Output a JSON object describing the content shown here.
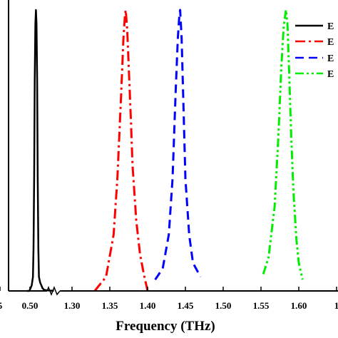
{
  "chart_data": {
    "type": "line",
    "title": "",
    "xlabel": "Frequency (THz)",
    "ylabel": "",
    "grid": false,
    "legend_placement": "top-right",
    "axis_break": "between 0.50 and 1.30 (zigzag break marks on x-axis)",
    "x_tick_labels": [
      "5",
      "0.50",
      "1.30",
      "1.35",
      "1.40",
      "1.45",
      "1.50",
      "1.55",
      "1.60",
      "1"
    ],
    "xlim_left_segment": [
      0.445,
      0.555
    ],
    "xlim_right_segment": [
      1.275,
      1.635
    ],
    "ylim": [
      0,
      1
    ],
    "series": [
      {
        "name": "E",
        "color": "#000000",
        "dash": "solid",
        "x": [
          0.495,
          0.497,
          0.499,
          0.501,
          0.503,
          0.505,
          0.506,
          0.507,
          0.508,
          0.509,
          0.51,
          0.511,
          0.512,
          0.513,
          0.514,
          0.515,
          0.517,
          0.519,
          0.521,
          0.523,
          0.525,
          0.53,
          0.535,
          0.54
        ],
        "y": [
          0.0,
          0.0,
          0.0,
          0.01,
          0.02,
          0.05,
          0.15,
          0.4,
          0.75,
          0.95,
          1.0,
          0.95,
          0.75,
          0.4,
          0.15,
          0.05,
          0.03,
          0.02,
          0.01,
          0.005,
          0.003,
          0.002,
          0.001,
          0.001
        ]
      },
      {
        "name": "E",
        "color": "#ff0000",
        "dash": "dashdot",
        "x": [
          1.33,
          1.345,
          1.355,
          1.36,
          1.365,
          1.368,
          1.37,
          1.371,
          1.373,
          1.375,
          1.378,
          1.38,
          1.385,
          1.39,
          1.395,
          1.4
        ],
        "y": [
          0.0,
          0.05,
          0.2,
          0.4,
          0.7,
          0.9,
          0.98,
          1.0,
          0.93,
          0.8,
          0.6,
          0.45,
          0.25,
          0.13,
          0.06,
          0.0
        ]
      },
      {
        "name": "E",
        "color": "#0000ff",
        "dash": "dashed",
        "x": [
          1.41,
          1.42,
          1.428,
          1.433,
          1.437,
          1.44,
          1.442,
          1.443,
          1.445,
          1.448,
          1.45,
          1.455,
          1.46,
          1.47
        ],
        "y": [
          0.04,
          0.08,
          0.2,
          0.4,
          0.7,
          0.9,
          0.98,
          1.0,
          0.9,
          0.6,
          0.4,
          0.2,
          0.1,
          0.05
        ]
      },
      {
        "name": "E",
        "color": "#00ee00",
        "dash": "dashdotdot",
        "x": [
          1.553,
          1.56,
          1.568,
          1.573,
          1.577,
          1.58,
          1.583,
          1.585,
          1.587,
          1.59,
          1.593,
          1.597,
          1.6,
          1.605
        ],
        "y": [
          0.06,
          0.12,
          0.3,
          0.55,
          0.8,
          0.94,
          1.0,
          0.95,
          0.8,
          0.55,
          0.35,
          0.18,
          0.1,
          0.04
        ]
      }
    ]
  }
}
